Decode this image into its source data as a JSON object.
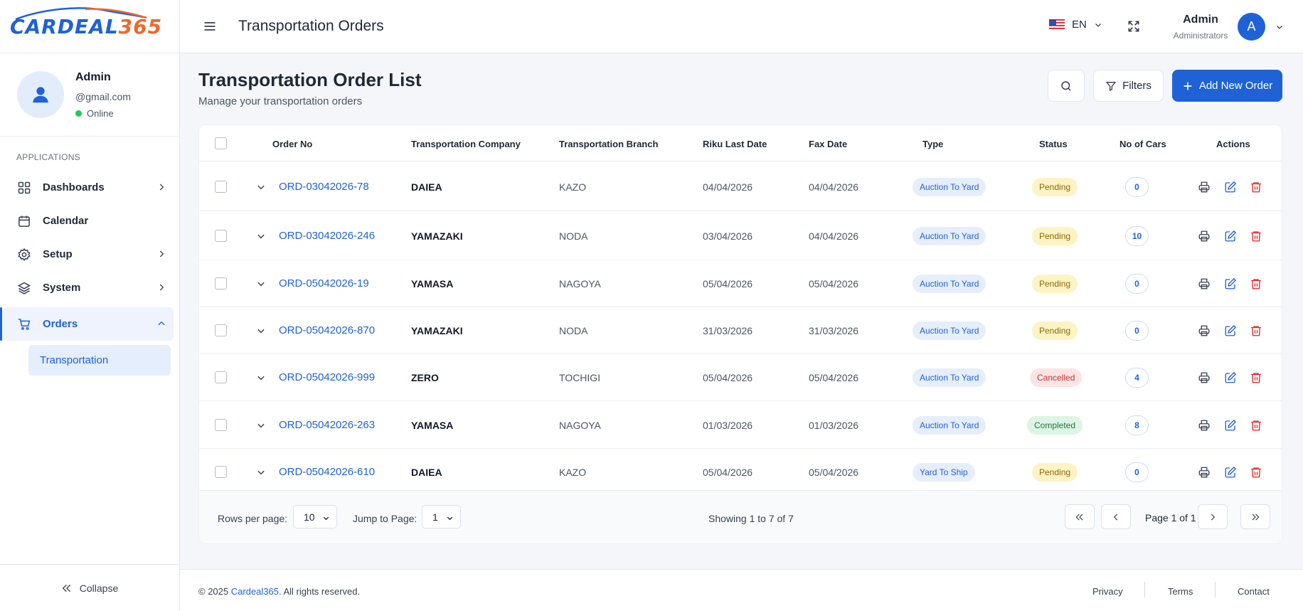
{
  "logo": {
    "part1": "CARDEAL",
    "part2": "365"
  },
  "profile": {
    "name": "Admin",
    "email": "@gmail.com",
    "status": "Online"
  },
  "sidebar": {
    "section_label": "APPLICATIONS",
    "items": [
      {
        "label": "Dashboards",
        "icon": "dashboard-icon"
      },
      {
        "label": "Calendar",
        "icon": "calendar-icon"
      },
      {
        "label": "Setup",
        "icon": "gear-icon"
      },
      {
        "label": "System",
        "icon": "layers-icon"
      },
      {
        "label": "Orders",
        "icon": "cart-icon"
      }
    ],
    "sub_item": "Transportation",
    "collapse_label": "Collapse"
  },
  "header": {
    "title": "Transportation Orders",
    "language": "EN",
    "user_name": "Admin",
    "user_role": "Administrators",
    "avatar_initial": "A"
  },
  "page": {
    "title": "Transportation Order List",
    "subtitle": "Manage your transportation orders",
    "filters_label": "Filters",
    "add_label": "Add New Order"
  },
  "table": {
    "headers": {
      "order_no": "Order No",
      "company": "Transportation Company",
      "branch": "Transportation Branch",
      "riku": "Riku Last Date",
      "fax": "Fax Date",
      "type": "Type",
      "status": "Status",
      "cars": "No of Cars",
      "actions": "Actions"
    },
    "rows": [
      {
        "order_no": "ORD-03042026-78",
        "company": "DAIEA",
        "branch": "KAZO",
        "riku": "04/04/2026",
        "fax": "04/04/2026",
        "type": "Auction To Yard",
        "status": "Pending",
        "cars": "0"
      },
      {
        "order_no": "ORD-03042026-246",
        "company": "YAMAZAKI",
        "branch": "NODA",
        "riku": "03/04/2026",
        "fax": "04/04/2026",
        "type": "Auction To Yard",
        "status": "Pending",
        "cars": "10"
      },
      {
        "order_no": "ORD-05042026-19",
        "company": "YAMASA",
        "branch": "NAGOYA",
        "riku": "05/04/2026",
        "fax": "05/04/2026",
        "type": "Auction To Yard",
        "status": "Pending",
        "cars": "0"
      },
      {
        "order_no": "ORD-05042026-870",
        "company": "YAMAZAKI",
        "branch": "NODA",
        "riku": "31/03/2026",
        "fax": "31/03/2026",
        "type": "Auction To Yard",
        "status": "Pending",
        "cars": "0"
      },
      {
        "order_no": "ORD-05042026-999",
        "company": "ZERO",
        "branch": "TOCHIGI",
        "riku": "05/04/2026",
        "fax": "05/04/2026",
        "type": "Auction To Yard",
        "status": "Cancelled",
        "cars": "4"
      },
      {
        "order_no": "ORD-05042026-263",
        "company": "YAMASA",
        "branch": "NAGOYA",
        "riku": "01/03/2026",
        "fax": "01/03/2026",
        "type": "Auction To Yard",
        "status": "Completed",
        "cars": "8"
      },
      {
        "order_no": "ORD-05042026-610",
        "company": "DAIEA",
        "branch": "KAZO",
        "riku": "05/04/2026",
        "fax": "05/04/2026",
        "type": "Yard To Ship",
        "status": "Pending",
        "cars": "0"
      }
    ]
  },
  "pagination": {
    "rows_per_page_label": "Rows per page:",
    "rows_per_page": "10",
    "jump_label": "Jump to Page:",
    "jump_value": "1",
    "showing": "Showing 1 to 7 of 7",
    "page_label": "Page 1 of 1"
  },
  "footer": {
    "copyright_prefix": "© 2025 ",
    "brand": "Cardeal365",
    "copyright_suffix": ". All rights reserved.",
    "links": [
      "Privacy",
      "Terms",
      "Contact"
    ]
  },
  "colors": {
    "primary": "#1e62d6",
    "brand_orange": "#f0682b",
    "danger": "#dc2626",
    "online": "#22c55e"
  }
}
